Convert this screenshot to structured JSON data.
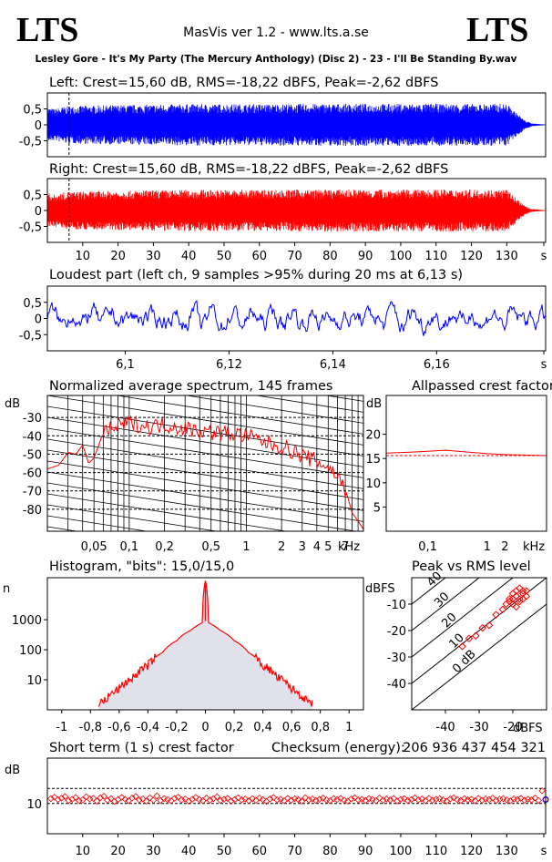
{
  "header": {
    "logo_left": "LTS",
    "logo_right": "LTS",
    "app_title": "MasVis ver 1.2 - www.lts.a.se",
    "filename": "Lesley Gore - It's My Party (The Mercury Anthology) (Disc 2) - 23 - I'll Be Standing By.wav"
  },
  "colors": {
    "left": "#0000ff",
    "right": "#ff0000",
    "grid": "#000000"
  },
  "chart_data": [
    {
      "id": "left_waveform",
      "type": "area",
      "title": "Left: Crest=15,60 dB, RMS=-18,22 dBFS, Peak=-2,62 dBFS",
      "yticks": [
        "0,5",
        "0",
        "-0,5"
      ],
      "ylim": [
        -1,
        1
      ],
      "xlim": [
        0,
        141
      ],
      "marker_s": 6.13,
      "envelope": {
        "x": [
          0,
          2,
          5,
          10,
          20,
          40,
          60,
          80,
          100,
          120,
          130,
          133,
          135,
          137,
          141
        ],
        "amp": [
          0.55,
          0.5,
          0.58,
          0.6,
          0.62,
          0.65,
          0.65,
          0.66,
          0.66,
          0.66,
          0.66,
          0.35,
          0.15,
          0.05,
          0.01
        ]
      }
    },
    {
      "id": "right_waveform",
      "type": "area",
      "title": "Right: Crest=15,60 dB, RMS=-18,22 dBFS, Peak=-2,62 dBFS",
      "yticks": [
        "0,5",
        "0",
        "-0,5"
      ],
      "xticks": [
        "10",
        "20",
        "30",
        "40",
        "50",
        "60",
        "70",
        "80",
        "90",
        "100",
        "110",
        "120",
        "130",
        "s"
      ],
      "ylim": [
        -1,
        1
      ],
      "xlim": [
        0,
        141
      ],
      "marker_s": 6.13,
      "envelope": {
        "x": [
          0,
          2,
          5,
          10,
          20,
          40,
          60,
          80,
          100,
          120,
          130,
          133,
          135,
          137,
          141
        ],
        "amp": [
          0.55,
          0.5,
          0.58,
          0.6,
          0.62,
          0.65,
          0.65,
          0.66,
          0.66,
          0.66,
          0.66,
          0.35,
          0.15,
          0.05,
          0.01
        ]
      }
    },
    {
      "id": "loudest_part",
      "type": "line",
      "title": "Loudest part (left  ch, 9 samples >95% during 20 ms at 6,13 s)",
      "yticks": [
        "0,5",
        "0",
        "-0,5"
      ],
      "xticks": [
        "6,1",
        "6,12",
        "6,14",
        "6,16",
        "s"
      ],
      "xlim": [
        6.085,
        6.181
      ],
      "ylim": [
        -1,
        1
      ]
    },
    {
      "id": "spectrum",
      "type": "line",
      "title": "Normalized average spectrum, 145 frames",
      "ylabel": "dB",
      "yticks": [
        "-30",
        "-40",
        "-50",
        "-60",
        "-70",
        "-80"
      ],
      "xticks": [
        "0,05",
        "0,1",
        "0,2",
        "0,5",
        "1",
        "2",
        "3",
        "4",
        "5",
        "7"
      ],
      "xlabel": "kHz",
      "x_scale": "log",
      "ylim": [
        -92,
        -18
      ],
      "xlim": [
        0.02,
        10
      ],
      "series": [
        {
          "x": [
            0.02,
            0.025,
            0.03,
            0.035,
            0.04,
            0.045,
            0.05,
            0.06,
            0.08,
            0.1,
            0.15,
            0.2,
            0.3,
            0.5,
            0.8,
            1,
            1.5,
            2,
            3,
            4,
            5,
            6,
            7,
            8,
            10
          ],
          "values": [
            -58,
            -56,
            -49,
            -50,
            -45,
            -55,
            -52,
            -38,
            -35,
            -33,
            -35,
            -34,
            -36,
            -38,
            -39,
            -40,
            -44,
            -46,
            -51,
            -54,
            -57,
            -62,
            -69,
            -82,
            -91
          ]
        }
      ]
    },
    {
      "id": "allpassed_crest",
      "type": "line",
      "title": "Allpassed crest factor",
      "ylabel": "dB",
      "yticks": [
        "20",
        "15",
        "10",
        "5"
      ],
      "xticks": [
        "0,1",
        "1",
        "2"
      ],
      "xlabel": "kHz",
      "x_scale": "log",
      "ylim": [
        0,
        28
      ],
      "xlim": [
        0.02,
        10
      ],
      "series": [
        {
          "x": [
            0.02,
            0.05,
            0.1,
            0.2,
            0.5,
            1,
            2,
            5,
            10
          ],
          "values": [
            16.1,
            16.3,
            16.5,
            16.7,
            16.3,
            16.0,
            15.8,
            15.7,
            15.6
          ]
        }
      ],
      "reference": 15.6
    },
    {
      "id": "histogram",
      "type": "line",
      "title": "Histogram, \"bits\": 15,0/15,0",
      "ylabel": "n",
      "y_scale": "log",
      "yticks": [
        "1000",
        "100",
        "10"
      ],
      "xticks": [
        "-1",
        "-0,8",
        "-0,6",
        "-0,4",
        "-0,2",
        "0",
        "0,2",
        "0,4",
        "0,6",
        "0,8",
        "1"
      ],
      "xlim": [
        -1.1,
        1.1
      ],
      "ylim": [
        1,
        25000
      ],
      "series": [
        {
          "x": [
            -0.75,
            -0.7,
            -0.6,
            -0.5,
            -0.4,
            -0.3,
            -0.2,
            -0.1,
            -0.02,
            0,
            0.02,
            0.1,
            0.2,
            0.3,
            0.4,
            0.5,
            0.6,
            0.7,
            0.75
          ],
          "values": [
            1.5,
            2,
            5,
            12,
            30,
            80,
            200,
            450,
            800,
            20000,
            800,
            450,
            200,
            80,
            30,
            12,
            5,
            2,
            1.5
          ]
        }
      ]
    },
    {
      "id": "peak_vs_rms",
      "type": "scatter",
      "title": "Peak vs RMS level",
      "ylabel": "dBFS",
      "xlabel": "dBFS",
      "yticks": [
        "-10",
        "-20",
        "-30",
        "-40"
      ],
      "xticks": [
        "-40",
        "-30",
        "-20"
      ],
      "xlim": [
        -50,
        -10
      ],
      "ylim": [
        -50,
        0
      ],
      "diagonals": [
        "40",
        "30",
        "20",
        "10",
        "0 dB"
      ],
      "points": {
        "x": [
          -35,
          -33,
          -31,
          -29,
          -27,
          -25,
          -23,
          -22,
          -21,
          -20,
          -20,
          -19,
          -19,
          -18,
          -18,
          -17,
          -17,
          -16,
          -20,
          -19,
          -18,
          -17,
          -21,
          -16
        ],
        "y": [
          -26,
          -23,
          -22,
          -19,
          -18,
          -14,
          -12,
          -10,
          -9,
          -8,
          -6,
          -7,
          -5,
          -8,
          -4,
          -6,
          -5,
          -7,
          -10,
          -11,
          -9,
          -8,
          -8,
          -5
        ]
      }
    },
    {
      "id": "short_term_crest",
      "type": "scatter",
      "title": "Short term (1 s) crest factor",
      "checksum_label": "Checksum (energy):",
      "checksum_value": "206 936 437 454 321",
      "ylabel": "dB",
      "yticks": [
        "10"
      ],
      "xticks": [
        "10",
        "20",
        "30",
        "40",
        "50",
        "60",
        "70",
        "80",
        "90",
        "100",
        "110",
        "120",
        "130",
        "s"
      ],
      "xlim": [
        0,
        141
      ],
      "ylim": [
        0,
        25
      ],
      "reference_lines": [
        10,
        15
      ],
      "series": [
        {
          "values": [
            11.6,
            12.1,
            11.3,
            11.8,
            12.3,
            11.0,
            11.4,
            12.0,
            10.9,
            11.2,
            12.2,
            11.5,
            11.7,
            10.8,
            11.9,
            12.4,
            11.1,
            11.6,
            10.7,
            11.3,
            12.0,
            11.4,
            10.9,
            11.8,
            12.3,
            11.2,
            11.5,
            10.8,
            11.9,
            11.1,
            12.5,
            11.0,
            11.6,
            11.3,
            10.9,
            11.7,
            12.1,
            11.2,
            11.5,
            10.8,
            11.4,
            12.0,
            11.3,
            10.9,
            11.8,
            11.1,
            11.6,
            12.2,
            11.0,
            11.4,
            11.7,
            10.8,
            11.3,
            11.9,
            11.2,
            11.5,
            10.9,
            11.6,
            11.1,
            11.8,
            11.3,
            10.7,
            11.5,
            12.0,
            11.2,
            11.4,
            10.9,
            11.7,
            11.1,
            11.6,
            11.3,
            10.8,
            11.9,
            11.2,
            11.5,
            11.0,
            11.4,
            11.8,
            11.2,
            10.9,
            11.6,
            11.3,
            11.7,
            11.1,
            10.8,
            11.5,
            11.9,
            11.2,
            11.4,
            11.0,
            11.6,
            11.3,
            10.9,
            11.8,
            11.1,
            11.5,
            11.2,
            11.7,
            10.8,
            11.4,
            11.6,
            11.0,
            11.3,
            11.9,
            11.2,
            11.5,
            10.9,
            11.7,
            11.1,
            11.4,
            11.6,
            11.2,
            10.8,
            11.5,
            11.9,
            11.3,
            11.0,
            11.6,
            11.2,
            11.4,
            10.9,
            11.7,
            11.1,
            11.5,
            11.3,
            11.8,
            11.0,
            11.4,
            11.6,
            11.2,
            10.9,
            11.5,
            11.3,
            11.7,
            11.1,
            11.4,
            11.2,
            11.8,
            11.0,
            14.2,
            11.3
          ]
        }
      ]
    }
  ]
}
